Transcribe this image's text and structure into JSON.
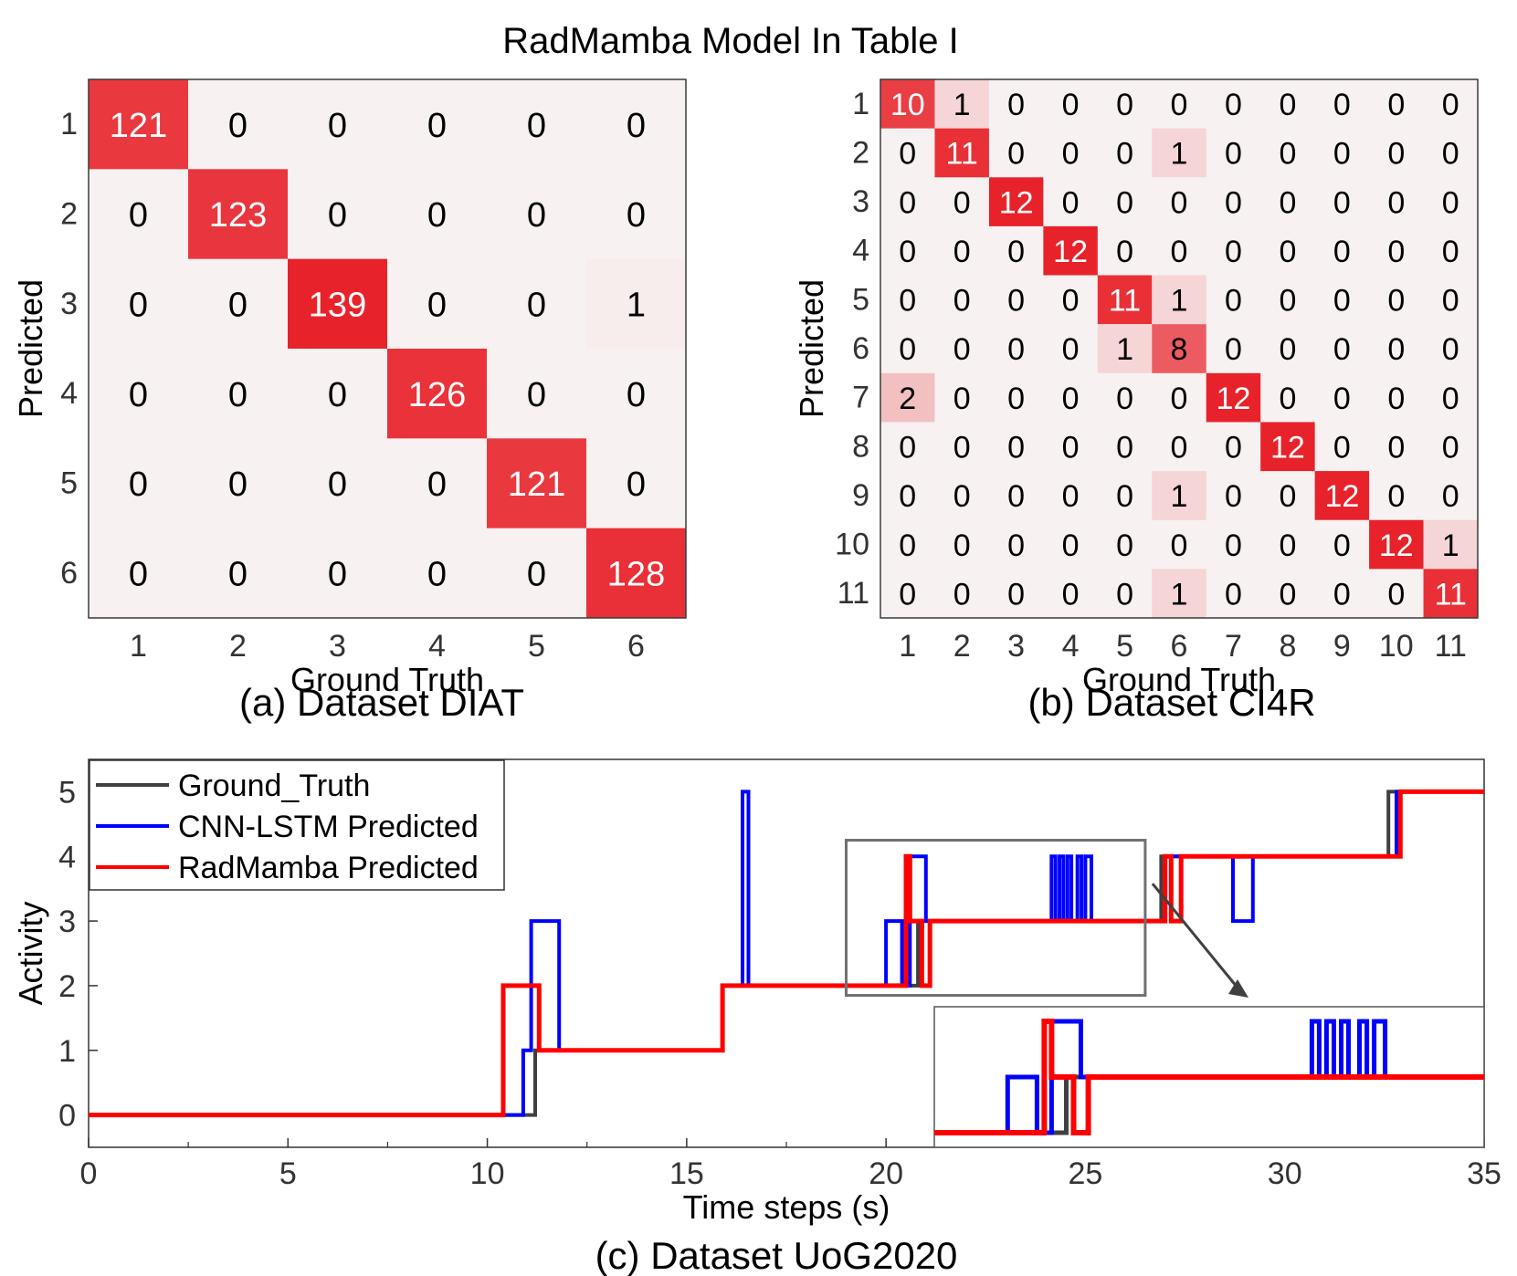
{
  "figure": {
    "title": "RadMamba Model In Table I"
  },
  "chart_data": [
    {
      "type": "heatmap",
      "panel_caption": "(a) Dataset DIAT",
      "xlabel": "Ground Truth",
      "ylabel": "Predicted",
      "x_categories": [
        "1",
        "2",
        "3",
        "4",
        "5",
        "6"
      ],
      "y_categories": [
        "1",
        "2",
        "3",
        "4",
        "5",
        "6"
      ],
      "matrix": [
        [
          121,
          0,
          0,
          0,
          0,
          0
        ],
        [
          0,
          123,
          0,
          0,
          0,
          0
        ],
        [
          0,
          0,
          139,
          0,
          0,
          1
        ],
        [
          0,
          0,
          0,
          126,
          0,
          0
        ],
        [
          0,
          0,
          0,
          0,
          121,
          0
        ],
        [
          0,
          0,
          0,
          0,
          0,
          128
        ]
      ],
      "colors": {
        "low": "#f7f1f1",
        "high": "#e8222a",
        "dark_text": "#000000",
        "light_text": "#ffffff"
      }
    },
    {
      "type": "heatmap",
      "panel_caption": "(b) Dataset CI4R",
      "xlabel": "Ground Truth",
      "ylabel": "Predicted",
      "x_categories": [
        "1",
        "2",
        "3",
        "4",
        "5",
        "6",
        "7",
        "8",
        "9",
        "10",
        "11"
      ],
      "y_categories": [
        "1",
        "2",
        "3",
        "4",
        "5",
        "6",
        "7",
        "8",
        "9",
        "10",
        "11"
      ],
      "matrix": [
        [
          10,
          1,
          0,
          0,
          0,
          0,
          0,
          0,
          0,
          0,
          0
        ],
        [
          0,
          11,
          0,
          0,
          0,
          1,
          0,
          0,
          0,
          0,
          0
        ],
        [
          0,
          0,
          12,
          0,
          0,
          0,
          0,
          0,
          0,
          0,
          0
        ],
        [
          0,
          0,
          0,
          12,
          0,
          0,
          0,
          0,
          0,
          0,
          0
        ],
        [
          0,
          0,
          0,
          0,
          11,
          1,
          0,
          0,
          0,
          0,
          0
        ],
        [
          0,
          0,
          0,
          0,
          1,
          8,
          0,
          0,
          0,
          0,
          0
        ],
        [
          2,
          0,
          0,
          0,
          0,
          0,
          12,
          0,
          0,
          0,
          0
        ],
        [
          0,
          0,
          0,
          0,
          0,
          0,
          0,
          12,
          0,
          0,
          0
        ],
        [
          0,
          0,
          0,
          0,
          0,
          1,
          0,
          0,
          12,
          0,
          0
        ],
        [
          0,
          0,
          0,
          0,
          0,
          0,
          0,
          0,
          0,
          12,
          1
        ],
        [
          0,
          0,
          0,
          0,
          0,
          1,
          0,
          0,
          0,
          0,
          11
        ]
      ],
      "colors": {
        "low": "#f7f1f1",
        "high": "#e8222a",
        "dark_text": "#000000",
        "light_text": "#ffffff"
      }
    },
    {
      "type": "line",
      "panel_caption": "(c) Dataset UoG2020",
      "xlabel": "Time steps (s)",
      "ylabel": "Activity",
      "xlim": [
        0,
        35
      ],
      "ylim": [
        -0.5,
        5.5
      ],
      "x_ticks": [
        0,
        5,
        10,
        15,
        20,
        25,
        30,
        35
      ],
      "y_ticks": [
        0,
        1,
        2,
        3,
        4,
        5
      ],
      "legend_position": "top-left",
      "series": [
        {
          "name": "Ground_Truth",
          "color": "#404040",
          "points": [
            [
              0,
              0
            ],
            [
              11.2,
              0
            ],
            [
              11.2,
              1
            ],
            [
              15.9,
              1
            ],
            [
              15.9,
              2
            ],
            [
              20.8,
              2
            ],
            [
              20.8,
              3
            ],
            [
              26.9,
              3
            ],
            [
              26.9,
              4
            ],
            [
              32.6,
              4
            ],
            [
              32.6,
              5
            ],
            [
              35,
              5
            ]
          ]
        },
        {
          "name": "CNN-LSTM Predicted",
          "color": "#0000ff",
          "points": [
            [
              0,
              0
            ],
            [
              10.9,
              0
            ],
            [
              10.9,
              1
            ],
            [
              11.1,
              1
            ],
            [
              11.1,
              3
            ],
            [
              11.8,
              3
            ],
            [
              11.8,
              1
            ],
            [
              15.9,
              1
            ],
            [
              15.9,
              2
            ],
            [
              16.4,
              2
            ],
            [
              16.4,
              5
            ],
            [
              16.55,
              5
            ],
            [
              16.55,
              2
            ],
            [
              20.0,
              2
            ],
            [
              20.0,
              3
            ],
            [
              20.4,
              3
            ],
            [
              20.4,
              2
            ],
            [
              20.6,
              2
            ],
            [
              20.6,
              4
            ],
            [
              21.0,
              4
            ],
            [
              21.0,
              3
            ],
            [
              24.15,
              3
            ],
            [
              24.15,
              4
            ],
            [
              24.25,
              4
            ],
            [
              24.25,
              3
            ],
            [
              24.35,
              3
            ],
            [
              24.35,
              4
            ],
            [
              24.45,
              4
            ],
            [
              24.45,
              3
            ],
            [
              24.55,
              3
            ],
            [
              24.55,
              4
            ],
            [
              24.65,
              4
            ],
            [
              24.65,
              3
            ],
            [
              24.8,
              3
            ],
            [
              24.8,
              4
            ],
            [
              24.9,
              4
            ],
            [
              24.9,
              3
            ],
            [
              25.0,
              3
            ],
            [
              25.0,
              4
            ],
            [
              25.15,
              4
            ],
            [
              25.15,
              3
            ],
            [
              27.0,
              3
            ],
            [
              27.0,
              4
            ],
            [
              28.7,
              4
            ],
            [
              28.7,
              3
            ],
            [
              29.2,
              3
            ],
            [
              29.2,
              4
            ],
            [
              32.8,
              4
            ],
            [
              32.8,
              5
            ],
            [
              35,
              5
            ]
          ]
        },
        {
          "name": "RadMamba Predicted",
          "color": "#ff0000",
          "points": [
            [
              0,
              0
            ],
            [
              10.4,
              0
            ],
            [
              10.4,
              2
            ],
            [
              11.3,
              2
            ],
            [
              11.3,
              1
            ],
            [
              15.9,
              1
            ],
            [
              15.9,
              2
            ],
            [
              20.5,
              2
            ],
            [
              20.5,
              4
            ],
            [
              20.6,
              4
            ],
            [
              20.6,
              3
            ],
            [
              20.9,
              3
            ],
            [
              20.9,
              2
            ],
            [
              21.1,
              2
            ],
            [
              21.1,
              3
            ],
            [
              27.0,
              3
            ],
            [
              27.0,
              4
            ],
            [
              27.15,
              4
            ],
            [
              27.15,
              3
            ],
            [
              27.4,
              3
            ],
            [
              27.4,
              4
            ],
            [
              32.9,
              4
            ],
            [
              32.9,
              5
            ],
            [
              35,
              5
            ]
          ]
        }
      ]
    }
  ]
}
